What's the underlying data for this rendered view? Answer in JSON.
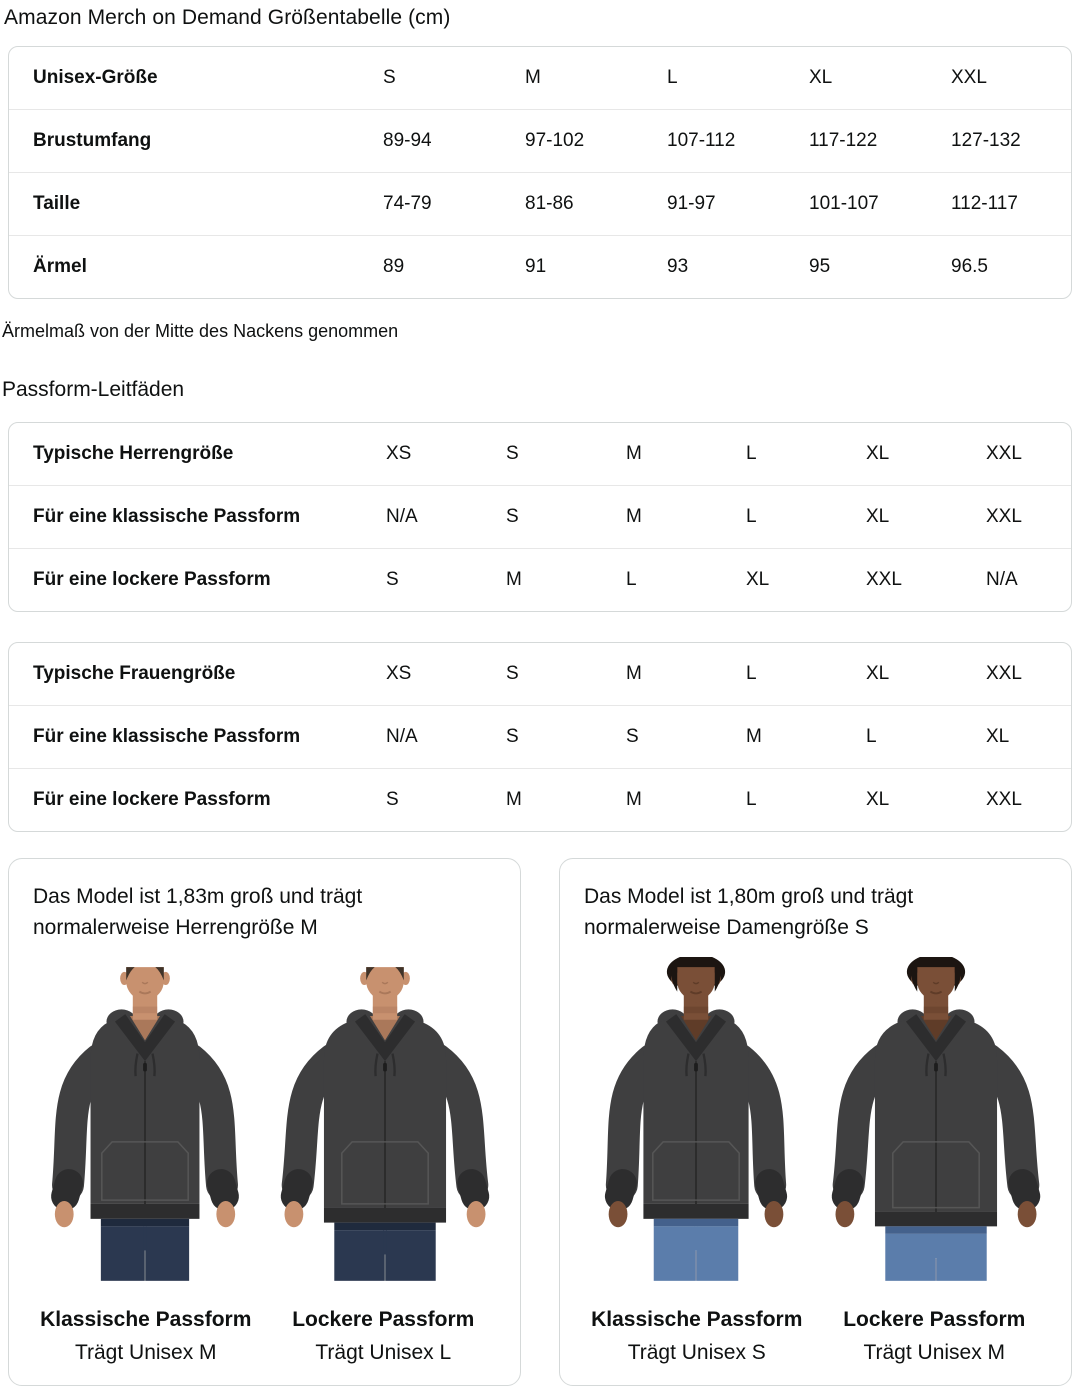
{
  "page_title": "Amazon Merch on Demand Größentabelle (cm)",
  "size_table": {
    "header": [
      "Unisex-Größe",
      "S",
      "M",
      "L",
      "XL",
      "XXL"
    ],
    "rows": [
      {
        "label": "Brustumfang",
        "values": [
          "89-94",
          "97-102",
          "107-112",
          "117-122",
          "127-132"
        ]
      },
      {
        "label": "Taille",
        "values": [
          "74-79",
          "81-86",
          "91-97",
          "101-107",
          "112-117"
        ]
      },
      {
        "label": "Ärmel",
        "values": [
          "89",
          "91",
          "93",
          "95",
          "96.5"
        ]
      }
    ]
  },
  "sleeve_note": "Ärmelmaß von der Mitte des Nackens genommen",
  "fit_guides_heading": "Passform-Leitfäden",
  "mens_fit_table": {
    "header": [
      "Typische Herrengröße",
      "XS",
      "S",
      "M",
      "L",
      "XL",
      "XXL"
    ],
    "rows": [
      {
        "label": "Für eine klassische Passform",
        "values": [
          "N/A",
          "S",
          "M",
          "L",
          "XL",
          "XXL"
        ]
      },
      {
        "label": "Für eine lockere Passform",
        "values": [
          "S",
          "M",
          "L",
          "XL",
          "XXL",
          "N/A"
        ]
      }
    ]
  },
  "womens_fit_table": {
    "header": [
      "Typische Frauengröße",
      "XS",
      "S",
      "M",
      "L",
      "XL",
      "XXL"
    ],
    "rows": [
      {
        "label": "Für eine klassische Passform",
        "values": [
          "N/A",
          "S",
          "S",
          "M",
          "L",
          "XL"
        ]
      },
      {
        "label": "Für eine lockere Passform",
        "values": [
          "S",
          "M",
          "M",
          "L",
          "XL",
          "XXL"
        ]
      }
    ]
  },
  "model_cards": [
    {
      "description": "Das Model ist 1,83m groß und trägt normalerweise Herrengröße M",
      "photos": [
        {
          "fit_label": "Klassische Passform",
          "size_label": "Trägt Unisex M"
        },
        {
          "fit_label": "Lockere Passform",
          "size_label": "Trägt Unisex L"
        }
      ]
    },
    {
      "description": "Das Model ist 1,80m groß und trägt normalerweise Damengröße S",
      "photos": [
        {
          "fit_label": "Klassische Passform",
          "size_label": "Trägt Unisex S"
        },
        {
          "fit_label": "Lockere Passform",
          "size_label": "Trägt Unisex M"
        }
      ]
    }
  ],
  "figures": [
    {
      "model": "male",
      "fit": "classic",
      "hair_style": "male",
      "widen": 1.0,
      "hem": 252,
      "skin": "#c8916f",
      "skin_shadow": "#aa785a",
      "hair": "#3f3228",
      "jeans": "#2b3850",
      "jeans_dark": "#1f2a3d"
    },
    {
      "model": "male",
      "fit": "loose",
      "hair_style": "male",
      "widen": 1.12,
      "hem": 256,
      "skin": "#c8916f",
      "skin_shadow": "#aa785a",
      "hair": "#3f3228",
      "jeans": "#2b3850",
      "jeans_dark": "#1f2a3d"
    },
    {
      "model": "female",
      "fit": "classic",
      "hair_style": "female",
      "widen": 0.97,
      "hem": 252,
      "skin": "#7a4f37",
      "skin_shadow": "#5f3c28",
      "hair": "#1c1511",
      "jeans": "#5b7dab",
      "jeans_dark": "#44618c"
    },
    {
      "model": "female",
      "fit": "loose",
      "hair_style": "female",
      "widen": 1.12,
      "hem": 260,
      "skin": "#7a4f37",
      "skin_shadow": "#5f3c28",
      "hair": "#1c1511",
      "jeans": "#5b7dab",
      "jeans_dark": "#44618c"
    }
  ],
  "colors": {
    "text_hex": "#0f1111",
    "border_hex": "#d5d9d9",
    "row_divider_hex": "#e7e7e7",
    "hoodie_hex": "#3f3f40",
    "hoodie_dark_hex": "#2d2d2e",
    "stitch_hex": "#5a5a5a"
  }
}
